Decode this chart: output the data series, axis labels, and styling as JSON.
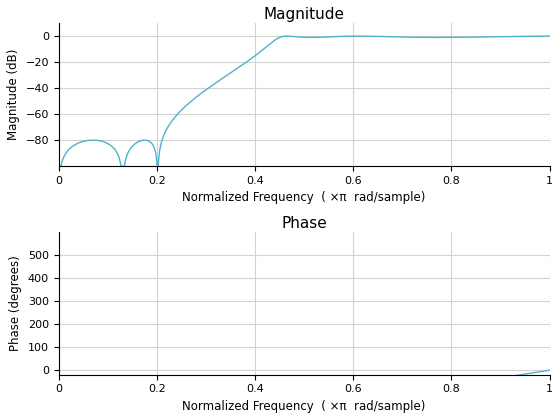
{
  "title_mag": "Magnitude",
  "title_phase": "Phase",
  "xlabel": "Normalized Frequency  ( ×π  rad/sample)",
  "ylabel_mag": "Magnitude (dB)",
  "ylabel_phase": "Phase (degrees)",
  "line_color": "#4db3c8",
  "background_color": "#ffffff",
  "grid_color": "#d3d3d3",
  "ylim_mag": [
    -100,
    10
  ],
  "ylim_phase": [
    -20,
    600
  ],
  "xlim": [
    0,
    1
  ],
  "yticks_mag": [
    0,
    -20,
    -40,
    -60,
    -80
  ],
  "yticks_phase": [
    0,
    100,
    200,
    300,
    400,
    500
  ],
  "xticks": [
    0,
    0.2,
    0.4,
    0.6,
    0.8,
    1.0
  ],
  "fig_width": 5.6,
  "fig_height": 4.2,
  "dpi": 100
}
